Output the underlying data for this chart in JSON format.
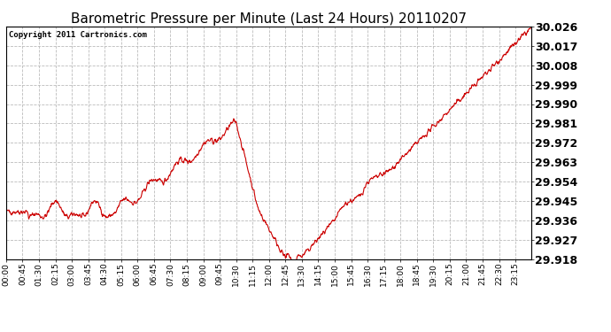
{
  "title": "Barometric Pressure per Minute (Last 24 Hours) 20110207",
  "copyright_text": "Copyright 2011 Cartronics.com",
  "line_color": "#cc0000",
  "bg_color": "#ffffff",
  "plot_bg_color": "#ffffff",
  "grid_color": "#bbbbbb",
  "ylim": [
    29.918,
    30.026
  ],
  "yticks": [
    29.918,
    29.927,
    29.936,
    29.945,
    29.954,
    29.963,
    29.972,
    29.981,
    29.99,
    29.999,
    30.008,
    30.017,
    30.026
  ],
  "xtick_labels": [
    "00:00",
    "00:45",
    "01:30",
    "02:15",
    "03:00",
    "03:45",
    "04:30",
    "05:15",
    "06:00",
    "06:45",
    "07:30",
    "08:15",
    "09:00",
    "09:45",
    "10:30",
    "11:15",
    "12:00",
    "12:45",
    "13:30",
    "14:15",
    "15:00",
    "15:45",
    "16:30",
    "17:15",
    "18:00",
    "18:45",
    "19:30",
    "20:15",
    "21:00",
    "21:45",
    "22:30",
    "23:15"
  ],
  "title_fontsize": 11,
  "ytick_fontsize": 9,
  "xtick_fontsize": 6.5,
  "copyright_fontsize": 6.5
}
